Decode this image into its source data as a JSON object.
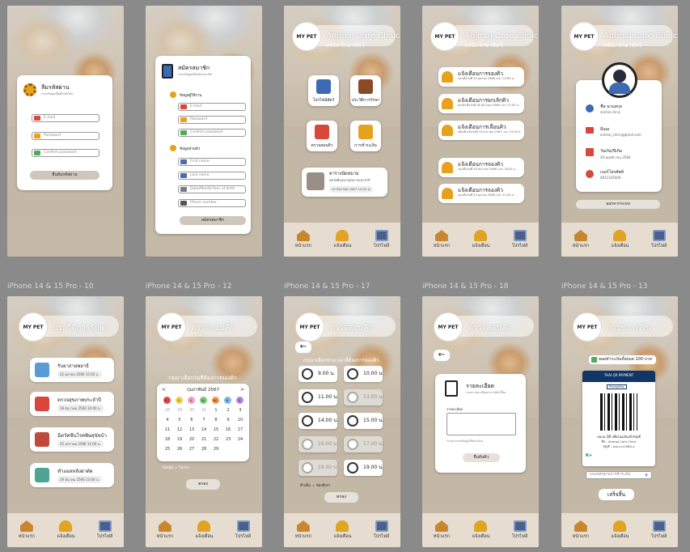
{
  "frame_labels": [
    "iPhone 14 & 15 Pro - 10",
    "iPhone 14 & 15 Pro - 12",
    "iPhone 14 & 15 Pro - 17",
    "iPhone 14 & 15 Pro - 18",
    "iPhone 14 & 15 Pro - 13"
  ],
  "tabs": {
    "home": "หน้าแรก",
    "notify": "แจ้งเตือน",
    "profile": "โปรไฟล์"
  },
  "clinic": {
    "name": "Animal Care Clinic",
    "name_th": "คลินิกรักษาสัตว์",
    "logo": "MY PET"
  },
  "reset": {
    "title": "ลืมรหัสผ่าน",
    "subtitle": "กรอกข้อมูลเพื่อตั้งรหัสใหม่",
    "email": "E-mail",
    "password": "Password",
    "confirm": "Confirm password",
    "button": "ยืนยันรหัสผ่าน"
  },
  "register": {
    "title": "สมัครสมาชิก",
    "subtitle": "กรอกข้อมูลเพื่อสมัครสมาชิก",
    "section_user": "ข้อมูลผู้ใช้งาน",
    "email": "E-mail",
    "password": "Password",
    "confirm": "Confirm password",
    "section_personal": "ข้อมูลส่วนตัว",
    "first": "First name",
    "last": "Last name",
    "dob": "Date/Month/Year of birth",
    "phone": "Phone number",
    "button": "สมัครสมาชิก"
  },
  "menu": {
    "profile": "โปรไฟล์สัตว์",
    "history": "ประวัติการรักษา",
    "book": "ตรวจสอบคิว",
    "pay": "การชำระเงิน",
    "appointment_title": "ตารางนัดหมาย",
    "appointment_desc": "นัดวัคซีน/ตรวจสุขภาพประจำปี",
    "appointment_date": "15 ธันวาคม 2567 14.00 น."
  },
  "notifications": [
    {
      "title": "แจ้งเตือนการจองคิว",
      "detail": "จองเมื่อวันที่ 25 ตุลาคม 2566 เวลา 10:00 น."
    },
    {
      "title": "แจ้งเตือนการยกเลิกคิว",
      "detail": "ยกเลิกเมื่อวันที่ 18 ธันวาคม 2566 เวลา 17:00 น."
    },
    {
      "title": "แจ้งเตือนการเลื่อนคิว",
      "detail": "เลื่อนคิวเป็นวันที่ 15 มกราคม 2567 เวลา 15:00 น."
    },
    {
      "title": "แจ้งเตือนการจองคิว",
      "detail": "จองเมื่อวันที่ 18 ธันวาคม 2566 เวลา 16:00 น."
    },
    {
      "title": "แจ้งเตือนการจองคิว",
      "detail": "จองเมื่อวันที่ 25 ตุลาคม 2566 เวลา 11:00 น."
    }
  ],
  "profile": {
    "name_label": "ชื่อ-นามสกุล",
    "name": "animal clinic",
    "email_label": "อีเมล",
    "email": "animal_clinic@gmail.com",
    "dob_label": "วันเกิด/ปีเกิด",
    "dob": "29 พฤศจิกายน 2566",
    "phone_label": "เบอร์โทรศัพท์",
    "phone": "0812345600",
    "logout": "ออกจากระบบ"
  },
  "history": {
    "title": "ประวัติการรักษา",
    "items": [
      {
        "title": "รับยาถ่ายพยาธิ",
        "date": "22 ตุลาคม 2566 15:00 น."
      },
      {
        "title": "ตรวจสุขภาพประจำปี",
        "date": "18 ธันวาคม 2566 10:00 น."
      },
      {
        "title": "ฉีดวัคซีนโรคพิษสุนัขบ้า",
        "date": "25 มกราคม 2566 11:00 น."
      },
      {
        "title": "ทำแผลหลังผ่าตัด",
        "date": "29 มีนาคม 2566 13:00 น."
      }
    ]
  },
  "calendar": {
    "title": "ตรวจสอบคิว",
    "prompt": "กรุณาเลือกวันที่ต้องการจองคิว",
    "month": "กุมภาพันธ์ 2567",
    "dows": [
      "อา.",
      "จ.",
      "อ.",
      "พ.",
      "พฤ.",
      "ศ.",
      "ส."
    ],
    "dow_colors": [
      "#e44a4a",
      "#f2d14a",
      "#f2a0c8",
      "#7cc77a",
      "#f29a4a",
      "#7cb8e8",
      "#b784e0"
    ],
    "days": [
      "28",
      "29",
      "30",
      "31",
      "1",
      "2",
      "3",
      "4",
      "5",
      "6",
      "7",
      "8",
      "9",
      "10",
      "11",
      "12",
      "13",
      "14",
      "15",
      "16",
      "17",
      "18",
      "19",
      "20",
      "21",
      "22",
      "23",
      "24",
      "25",
      "26",
      "27",
      "28",
      "29"
    ],
    "note": "วันหยุด = วันว่าง",
    "button": "ตกลง"
  },
  "slots": {
    "prompt": "กรุณาเลือกช่วงเวลาที่ต้องการจองคิว",
    "items": [
      {
        "time": "9.00 น.",
        "off": false
      },
      {
        "time": "10.00 น.",
        "off": false
      },
      {
        "time": "11.00 น.",
        "off": false
      },
      {
        "time": "13.00 น.",
        "off": true
      },
      {
        "time": "14.00 น.",
        "off": false
      },
      {
        "time": "15.00 น.",
        "off": false
      },
      {
        "time": "16.00 น.",
        "off": true
      },
      {
        "time": "17.00 น.",
        "off": true
      },
      {
        "time": "18.00 น.",
        "off": true
      },
      {
        "time": "19.00 น.",
        "off": false
      }
    ],
    "note": "คิวเต็ม = ช่องสีเทา",
    "button": "ตกลง"
  },
  "detail": {
    "title": "รายละเอียด",
    "subtitle": "กรอกรายละเอียดอาการสัตว์เลี้ยง",
    "field_label": "รายละเอียด",
    "hint": "*กรุณากรอกข้อมูลให้ครบถ้วน",
    "button": "ยืนยันคิว"
  },
  "payment": {
    "title": "การชำระเงิน",
    "amount": "ยอดชำระเงินทั้งหมด 100 บาท",
    "qr_brand": "THAI QR PAYMENT",
    "promptpay": "PromptPay",
    "account": "สแกน QR เพื่อโอนเงินเข้าบัญชี",
    "account_name": "ชื่อ : Animal Care Clinic",
    "account_no": "บัญชี : xxx-x-x1060-x",
    "bank": "K+",
    "upload": "แนบหลักฐานการชำระเงิน",
    "button": "เสร็จสิ้น"
  }
}
